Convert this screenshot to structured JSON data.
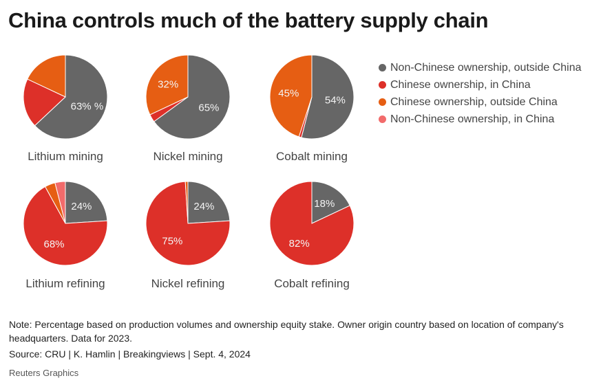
{
  "title": "China controls much of the battery supply chain",
  "legend": [
    {
      "label": "Non-Chinese ownership, outside China",
      "color": "#666666"
    },
    {
      "label": "Chinese ownership, in China",
      "color": "#dd3029"
    },
    {
      "label": "Chinese ownership, outside China",
      "color": "#e65e13"
    },
    {
      "label": "Non-Chinese ownership, in China",
      "color": "#f26b6b"
    }
  ],
  "chart_data": [
    {
      "type": "pie",
      "title": "Lithium mining",
      "slices": [
        {
          "category": "Non-Chinese ownership, outside China",
          "value": 63,
          "label": "63% %"
        },
        {
          "category": "Chinese ownership, in China",
          "value": 19,
          "label": ""
        },
        {
          "category": "Chinese ownership, outside China",
          "value": 18,
          "label": ""
        }
      ]
    },
    {
      "type": "pie",
      "title": "Nickel mining",
      "slices": [
        {
          "category": "Non-Chinese ownership, outside China",
          "value": 65,
          "label": "65%"
        },
        {
          "category": "Chinese ownership, in China",
          "value": 3,
          "label": ""
        },
        {
          "category": "Chinese ownership, outside China",
          "value": 32,
          "label": "32%"
        }
      ]
    },
    {
      "type": "pie",
      "title": "Cobalt mining",
      "slices": [
        {
          "category": "Non-Chinese ownership, outside China",
          "value": 54,
          "label": "54%"
        },
        {
          "category": "Chinese ownership, in China",
          "value": 1,
          "label": ""
        },
        {
          "category": "Chinese ownership, outside China",
          "value": 45,
          "label": "45%"
        }
      ]
    },
    {
      "type": "pie",
      "title": "Lithium refining",
      "slices": [
        {
          "category": "Non-Chinese ownership, outside China",
          "value": 24,
          "label": "24%"
        },
        {
          "category": "Chinese ownership, in China",
          "value": 68,
          "label": "68%"
        },
        {
          "category": "Chinese ownership, outside China",
          "value": 4,
          "label": ""
        },
        {
          "category": "Non-Chinese ownership, in China",
          "value": 4,
          "label": ""
        }
      ]
    },
    {
      "type": "pie",
      "title": "Nickel refining",
      "slices": [
        {
          "category": "Non-Chinese ownership, outside China",
          "value": 24,
          "label": "24%"
        },
        {
          "category": "Chinese ownership, in China",
          "value": 75,
          "label": "75%"
        },
        {
          "category": "Chinese ownership, outside China",
          "value": 1,
          "label": ""
        }
      ]
    },
    {
      "type": "pie",
      "title": "Cobalt refining",
      "slices": [
        {
          "category": "Non-Chinese ownership, outside China",
          "value": 18,
          "label": "18%"
        },
        {
          "category": "Chinese ownership, in China",
          "value": 82,
          "label": "82%"
        }
      ]
    }
  ],
  "note": "Note: Percentage based on production volumes and ownership equity stake. Owner origin country based on location of company's headquarters. Data for 2023.",
  "source": "Source: CRU | K. Hamlin | Breakingviews | Sept. 4, 2024",
  "credit": "Reuters Graphics"
}
